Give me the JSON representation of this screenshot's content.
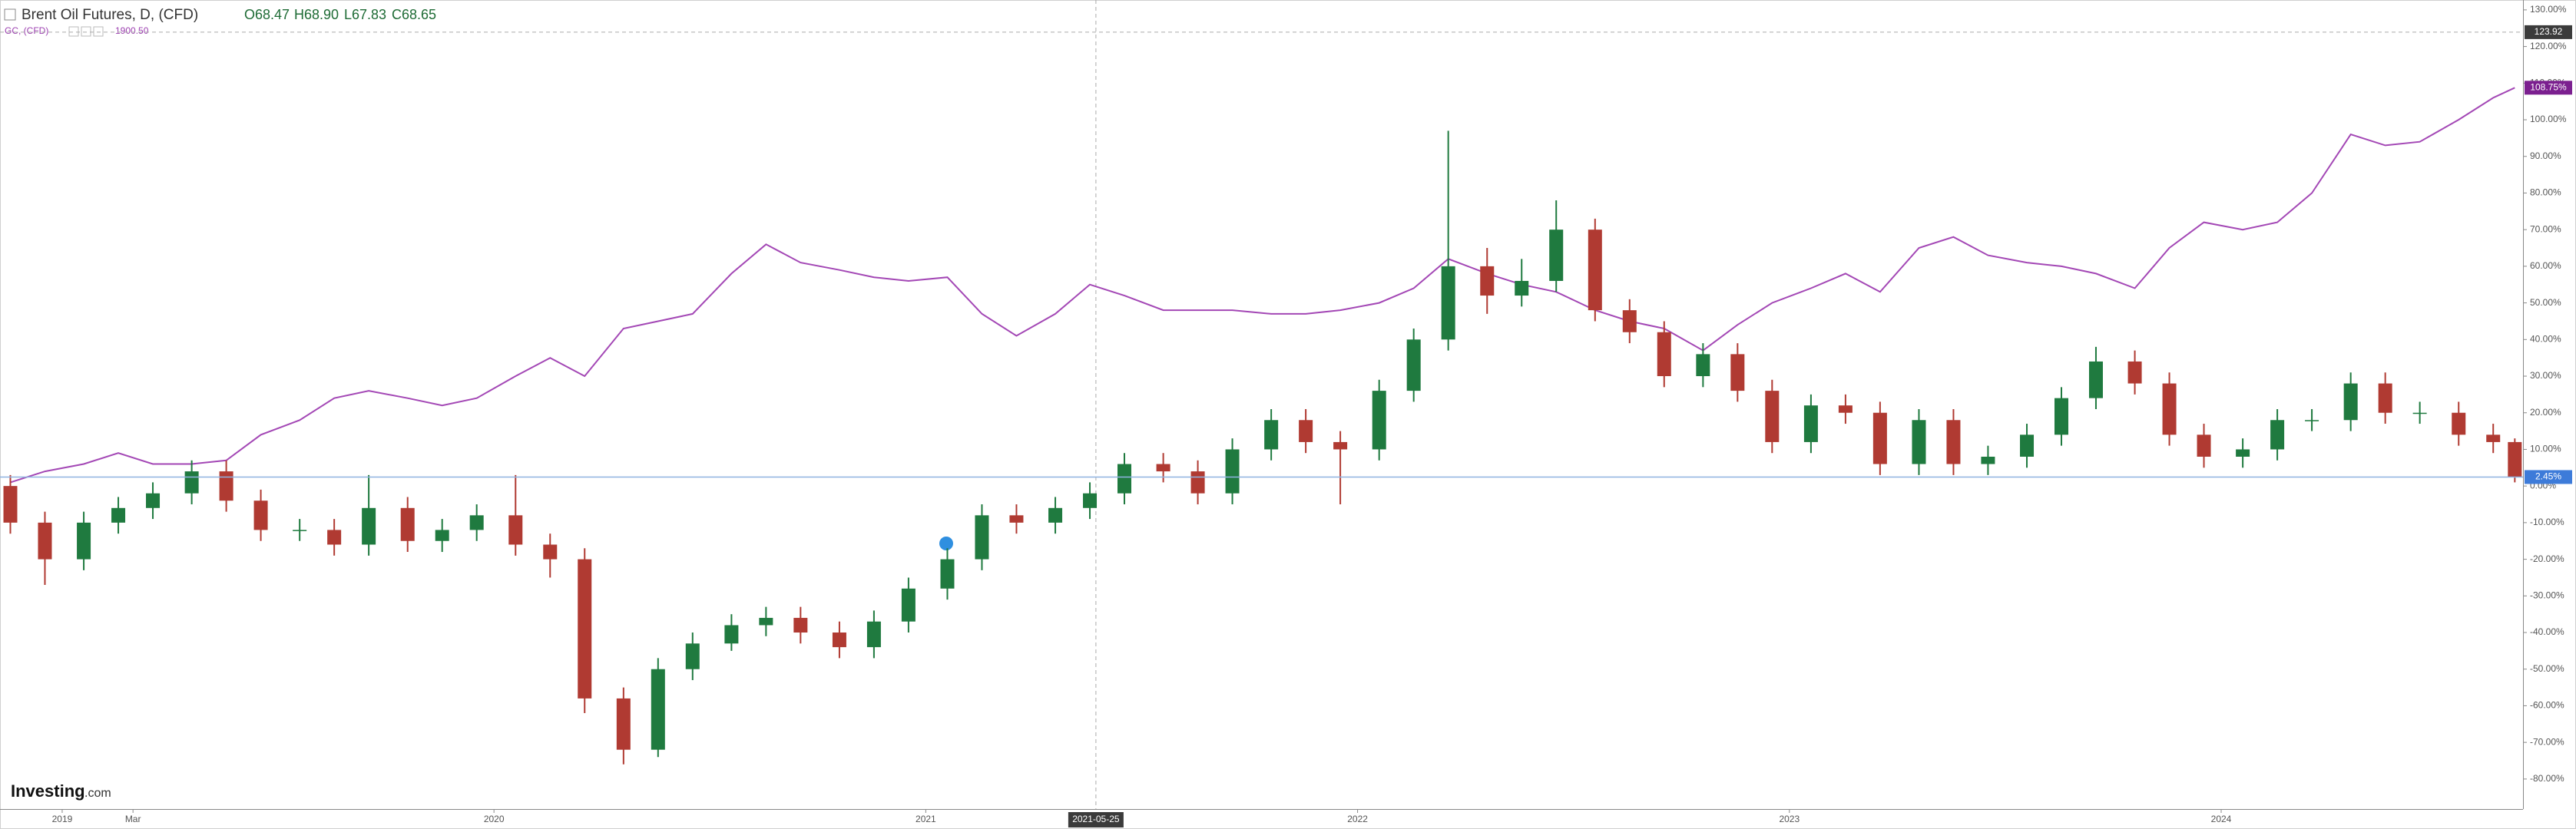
{
  "chart_data": {
    "type": "candlestick",
    "title": "Brent Oil Futures, D, (CFD)",
    "header": [
      "O68.47",
      "H68.90",
      "L67.83",
      "C68.65"
    ],
    "x": [
      2018.88,
      2018.96,
      2019.05,
      2019.13,
      2019.21,
      2019.3,
      2019.38,
      2019.46,
      2019.55,
      2019.63,
      2019.71,
      2019.8,
      2019.88,
      2019.96,
      2020.05,
      2020.13,
      2020.21,
      2020.3,
      2020.38,
      2020.46,
      2020.55,
      2020.63,
      2020.71,
      2020.8,
      2020.88,
      2020.96,
      2021.05,
      2021.13,
      2021.21,
      2021.3,
      2021.38,
      2021.46,
      2021.55,
      2021.63,
      2021.71,
      2021.8,
      2021.88,
      2021.96,
      2022.05,
      2022.13,
      2022.21,
      2022.3,
      2022.38,
      2022.46,
      2022.55,
      2022.63,
      2022.71,
      2022.8,
      2022.88,
      2022.96,
      2023.05,
      2023.13,
      2023.21,
      2023.3,
      2023.38,
      2023.46,
      2023.55,
      2023.63,
      2023.71,
      2023.8,
      2023.88,
      2023.96,
      2024.05,
      2024.13,
      2024.21,
      2024.3,
      2024.38,
      2024.46,
      2024.55,
      2024.63,
      2024.68
    ],
    "open": [
      0,
      -10,
      -20,
      -10,
      -6,
      -2,
      4,
      -4,
      -12,
      -12,
      -16,
      -6,
      -15,
      -12,
      -8,
      -16,
      -20,
      -58,
      -72,
      -50,
      -43,
      -38,
      -36,
      -40,
      -44,
      -37,
      -28,
      -20,
      -8,
      -10,
      -6,
      -2,
      6,
      4,
      -2,
      10,
      18,
      12,
      10,
      26,
      40,
      60,
      52,
      56,
      70,
      48,
      42,
      30,
      36,
      26,
      12,
      22,
      20,
      6,
      18,
      6,
      8,
      14,
      24,
      34,
      28,
      14,
      8,
      10,
      18,
      18,
      28,
      20,
      20,
      14,
      12
    ],
    "high": [
      3,
      -7,
      -7,
      -3,
      1,
      7,
      7,
      -1,
      -9,
      -9,
      3,
      -3,
      -9,
      -5,
      3,
      -13,
      -17,
      -55,
      -47,
      -40,
      -35,
      -33,
      -33,
      -37,
      -34,
      -25,
      -17,
      -5,
      -5,
      -3,
      1,
      9,
      9,
      7,
      13,
      21,
      21,
      15,
      29,
      43,
      97,
      65,
      62,
      78,
      73,
      51,
      45,
      39,
      39,
      29,
      25,
      25,
      23,
      21,
      21,
      11,
      17,
      27,
      38,
      37,
      31,
      17,
      13,
      21,
      21,
      31,
      31,
      23,
      23,
      17,
      13
    ],
    "low": [
      -13,
      -27,
      -23,
      -13,
      -9,
      -5,
      -7,
      -15,
      -15,
      -19,
      -19,
      -18,
      -18,
      -15,
      -19,
      -25,
      -62,
      -76,
      -74,
      -53,
      -45,
      -41,
      -43,
      -47,
      -47,
      -40,
      -31,
      -23,
      -13,
      -13,
      -9,
      -5,
      1,
      -5,
      -5,
      7,
      9,
      -5,
      7,
      23,
      37,
      47,
      49,
      53,
      45,
      39,
      27,
      27,
      23,
      9,
      9,
      17,
      3,
      3,
      3,
      3,
      5,
      11,
      21,
      25,
      11,
      5,
      5,
      7,
      15,
      15,
      17,
      17,
      11,
      9,
      1
    ],
    "close": [
      -10,
      -20,
      -10,
      -6,
      -2,
      4,
      -4,
      -12,
      -12,
      -16,
      -6,
      -15,
      -12,
      -8,
      -16,
      -20,
      -58,
      -72,
      -50,
      -43,
      -38,
      -36,
      -40,
      -44,
      -37,
      -28,
      -20,
      -8,
      -10,
      -6,
      -2,
      6,
      4,
      -2,
      10,
      18,
      12,
      10,
      26,
      40,
      60,
      52,
      56,
      70,
      48,
      42,
      30,
      36,
      26,
      12,
      22,
      20,
      6,
      18,
      6,
      8,
      14,
      24,
      34,
      28,
      14,
      8,
      10,
      18,
      18,
      28,
      20,
      20,
      14,
      12,
      2.45
    ],
    "up_color": "#1f7a3f",
    "down_color": "#b03a32",
    "last_value_label": "2.45%",
    "last_line_color": "#8fb3e0",
    "last_tag_color": "#3d7bd9",
    "overlay": {
      "type": "line",
      "name": "GC, (CFD)",
      "price_label": "1900.50",
      "color": "#a347b5",
      "values": [
        1,
        4,
        6,
        9,
        6,
        6,
        7,
        14,
        18,
        24,
        26,
        24,
        22,
        24,
        30,
        35,
        30,
        43,
        45,
        47,
        58,
        66,
        61,
        59,
        57,
        56,
        57,
        47,
        41,
        47,
        55,
        52,
        48,
        48,
        48,
        47,
        47,
        48,
        50,
        54,
        62,
        58,
        55,
        53,
        48,
        45,
        43,
        37,
        44,
        50,
        54,
        58,
        53,
        65,
        68,
        63,
        61,
        60,
        58,
        54,
        65,
        72,
        70,
        72,
        80,
        96,
        93,
        94,
        100,
        106,
        108.75
      ],
      "last_value_label": "108.75%",
      "tag_color": "#7b1f8f"
    },
    "xlim": [
      2018.856,
      2024.699
    ],
    "xticks": [
      2019,
      {
        "value": 2019.164,
        "label": "Mar"
      },
      2020,
      2021,
      2022,
      2023,
      2024
    ],
    "ylim": [
      -88.2,
      132.7
    ],
    "yticks": [
      {
        "value": 130,
        "label": "130.00%"
      },
      {
        "value": 120,
        "label": "120.00%"
      },
      {
        "value": 110,
        "label": "110.00%"
      },
      {
        "value": 100,
        "label": "100.00%"
      },
      {
        "value": 90,
        "label": "90.00%"
      },
      {
        "value": 80,
        "label": "80.00%"
      },
      {
        "value": 70,
        "label": "70.00%"
      },
      {
        "value": 60,
        "label": "60.00%"
      },
      {
        "value": 50,
        "label": "50.00%"
      },
      {
        "value": 40,
        "label": "40.00%"
      },
      {
        "value": 30,
        "label": "30.00%"
      },
      {
        "value": 20,
        "label": "20.00%"
      },
      {
        "value": 10,
        "label": "10.00%"
      },
      {
        "value": 0,
        "label": "0.00%"
      },
      {
        "value": -10,
        "label": "-10.00%"
      },
      {
        "value": -20,
        "label": "-20.00%"
      },
      {
        "value": -30,
        "label": "-30.00%"
      },
      {
        "value": -40,
        "label": "-40.00%"
      },
      {
        "value": -50,
        "label": "-50.00%"
      },
      {
        "value": -60,
        "label": "-60.00%"
      },
      {
        "value": -70,
        "label": "-70.00%"
      },
      {
        "value": -80,
        "label": "-80.00%"
      }
    ],
    "crosshair": {
      "x": {
        "value": 2021.394,
        "label": "2021-05-25"
      },
      "y": 123.92
    },
    "grid": false,
    "logo": "Investing",
    "logo_suffix": ".com"
  }
}
